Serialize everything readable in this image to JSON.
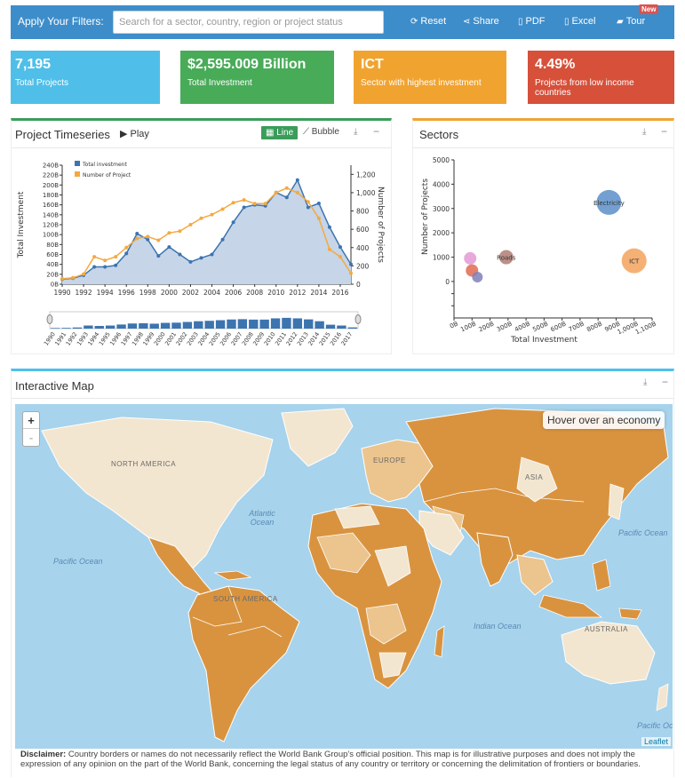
{
  "filters": {
    "label": "Apply Your Filters:",
    "placeholder": "Search for a sector, country, region or project status",
    "reset": "Reset",
    "share": "Share",
    "pdf": "PDF",
    "excel": "Excel",
    "tour": "Tour",
    "new_badge": "New"
  },
  "cards": [
    {
      "value": "7,195",
      "label": "Total Projects",
      "color": "#4fbfe9"
    },
    {
      "value": "$2,595.009 Billion",
      "label": "Total Investment",
      "color": "#48ab58"
    },
    {
      "value": "ICT",
      "label": "Sector with highest investment",
      "color": "#f1a330"
    },
    {
      "value": "4.49%",
      "label": "Projects from low income countries",
      "color": "#d6503a"
    }
  ],
  "timeseries": {
    "title": "Project Timeseries",
    "play": "Play",
    "line_btn": "Line",
    "bubble_btn": "Bubble",
    "chart_data": {
      "type": "line",
      "x": [
        1990,
        1991,
        1992,
        1993,
        1994,
        1995,
        1996,
        1997,
        1998,
        1999,
        2000,
        2001,
        2002,
        2003,
        2004,
        2005,
        2006,
        2007,
        2008,
        2009,
        2010,
        2011,
        2012,
        2013,
        2014,
        2015,
        2016,
        2017
      ],
      "series": [
        {
          "name": "Total investment",
          "values": [
            10,
            12,
            18,
            35,
            35,
            38,
            62,
            102,
            90,
            57,
            75,
            60,
            45,
            53,
            60,
            90,
            125,
            155,
            160,
            158,
            185,
            175,
            210,
            155,
            163,
            115,
            75,
            40
          ]
        },
        {
          "name": "Number of Project",
          "values": [
            60,
            70,
            110,
            300,
            260,
            300,
            400,
            500,
            520,
            480,
            560,
            580,
            650,
            720,
            760,
            820,
            890,
            920,
            880,
            880,
            1000,
            1050,
            1000,
            900,
            720,
            380,
            300,
            120
          ]
        }
      ],
      "ylabel": "Total Investment",
      "y2label": "Number of Projects",
      "y_ticks": [
        "0B",
        "20B",
        "40B",
        "60B",
        "80B",
        "100B",
        "120B",
        "140B",
        "160B",
        "180B",
        "200B",
        "220B",
        "240B"
      ],
      "y2_ticks": [
        "0",
        "200",
        "400",
        "600",
        "800",
        "1,000",
        "1,200"
      ],
      "ylim": [
        0,
        240
      ],
      "y2lim": [
        0,
        1300
      ]
    },
    "brush": {
      "years": [
        "1990",
        "1991",
        "1992",
        "1993",
        "1994",
        "1995",
        "1996",
        "1997",
        "1998",
        "1999",
        "2000",
        "2001",
        "2002",
        "2003",
        "2004",
        "2005",
        "2006",
        "2007",
        "2008",
        "2009",
        "2010",
        "2011",
        "2012",
        "2013",
        "2014",
        "2015",
        "2016",
        "2017"
      ]
    }
  },
  "sectors": {
    "title": "Sectors",
    "chart_data": {
      "type": "scatter",
      "xlabel": "Total Investment",
      "ylabel": "Number of Projects",
      "x_ticks": [
        "0B",
        "100B",
        "200B",
        "300B",
        "400B",
        "500B",
        "600B",
        "700B",
        "800B",
        "900B",
        "1,000B",
        "1,100B"
      ],
      "y_ticks": [
        "0",
        "1000",
        "2000",
        "3000",
        "4000",
        "5000"
      ],
      "xlim": [
        0,
        1100
      ],
      "ylim": [
        -1500,
        5000
      ],
      "points": [
        {
          "label": "Electricity",
          "x": 860,
          "y": 3250,
          "color": "#5b8fc9",
          "r": 14
        },
        {
          "label": "ICT",
          "x": 1000,
          "y": 850,
          "color": "#f3a35d",
          "r": 14
        },
        {
          "label": "Roads",
          "x": 290,
          "y": 1000,
          "color": "#b07d73",
          "r": 8
        },
        {
          "label": "",
          "x": 90,
          "y": 950,
          "color": "#e399d6",
          "r": 7
        },
        {
          "label": "",
          "x": 100,
          "y": 450,
          "color": "#e06b50",
          "r": 7
        },
        {
          "label": "",
          "x": 130,
          "y": 180,
          "color": "#8080b8",
          "r": 6
        }
      ]
    }
  },
  "map": {
    "title": "Interactive Map",
    "hover": "Hover over an economy",
    "zoom_in": "+",
    "zoom_out": "-",
    "leaflet": "Leaflet",
    "labels": {
      "north_america": "NORTH AMERICA",
      "europe": "EUROPE",
      "asia": "ASIA",
      "south_america": "SOUTH AMERICA",
      "australia": "AUSTRALIA",
      "atlantic": "Atlantic Ocean",
      "pacific_w": "Pacific Ocean",
      "pacific_e": "Pacific Ocean",
      "indian": "Indian Ocean",
      "pacific_se": "Pacific Ocean"
    },
    "disclaimer_label": "Disclaimer:",
    "disclaimer_text": " Country borders or names do not necessarily reflect the World Bank Group's official position. This map is for illustrative purposes and does not imply the expression of any opinion on the part of the World Bank, concerning the legal status of any country or territory or concerning the delimitation of frontiers or boundaries."
  }
}
